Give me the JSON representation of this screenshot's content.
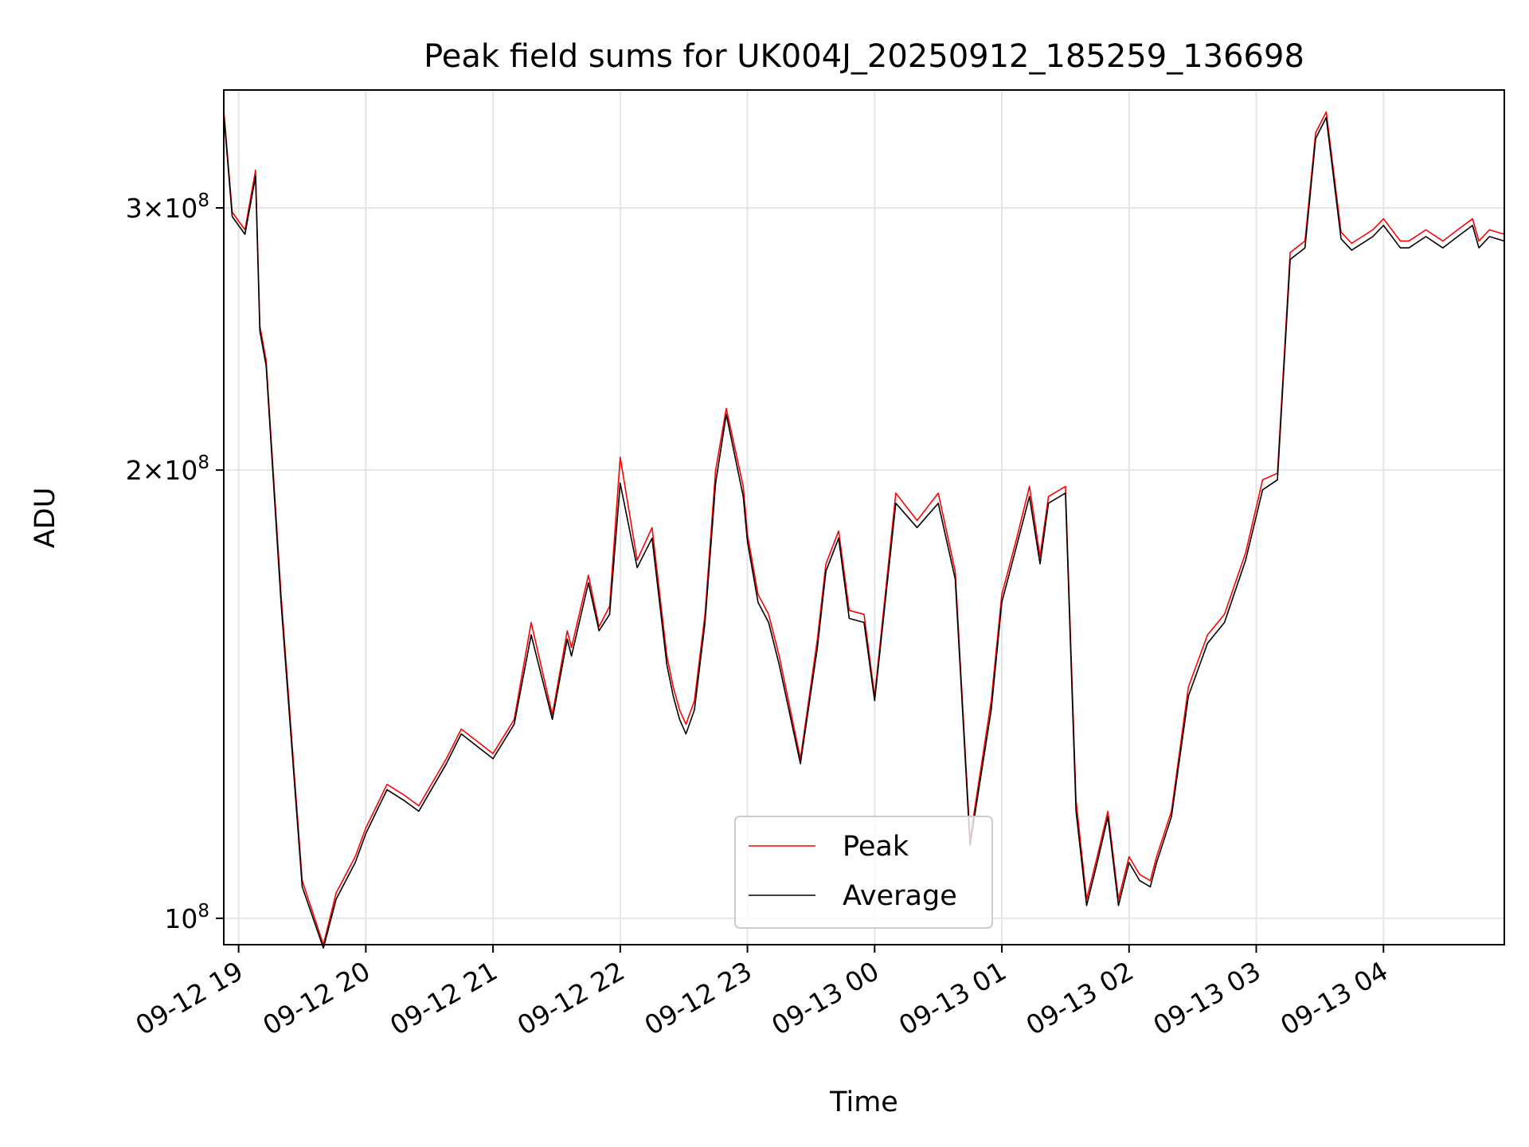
{
  "chart_data": {
    "type": "line",
    "title": "Peak field sums for UK004J_20250912_185259_136698",
    "xlabel": "Time",
    "ylabel": "ADU",
    "yscale": "log",
    "grid": true,
    "legend_location": "lower center",
    "x_range": [
      "2025-09-12 18:53",
      "2025-09-13 04:57"
    ],
    "ylim": [
      96000000,
      360000000
    ],
    "x_tick_labels": [
      "09-12 19",
      "09-12 20",
      "09-12 21",
      "09-12 22",
      "09-12 23",
      "09-13 00",
      "09-13 01",
      "09-13 02",
      "09-13 03",
      "09-13 04"
    ],
    "y_ticks": [
      {
        "value": 100000000,
        "label_mantissa": "",
        "label_base": "10",
        "label_exp": "8"
      },
      {
        "value": 200000000,
        "label_mantissa": "2×",
        "label_base": "10",
        "label_exp": "8"
      },
      {
        "value": 300000000,
        "label_mantissa": "3×",
        "label_base": "10",
        "label_exp": "8"
      }
    ],
    "series": [
      {
        "name": "Peak",
        "color": "#ff0000",
        "x": [
          "2025-09-12 18:53",
          "2025-09-12 18:57",
          "2025-09-12 19:03",
          "2025-09-12 19:08",
          "2025-09-12 19:10",
          "2025-09-12 19:13",
          "2025-09-12 19:20",
          "2025-09-12 19:30",
          "2025-09-12 19:40",
          "2025-09-12 19:46",
          "2025-09-12 19:55",
          "2025-09-12 20:00",
          "2025-09-12 20:10",
          "2025-09-12 20:18",
          "2025-09-12 20:25",
          "2025-09-12 20:38",
          "2025-09-12 20:45",
          "2025-09-12 21:00",
          "2025-09-12 21:10",
          "2025-09-12 21:18",
          "2025-09-12 21:28",
          "2025-09-12 21:35",
          "2025-09-12 21:37",
          "2025-09-12 21:45",
          "2025-09-12 21:50",
          "2025-09-12 21:55",
          "2025-09-12 22:00",
          "2025-09-12 22:08",
          "2025-09-12 22:15",
          "2025-09-12 22:22",
          "2025-09-12 22:25",
          "2025-09-12 22:28",
          "2025-09-12 22:31",
          "2025-09-12 22:35",
          "2025-09-12 22:40",
          "2025-09-12 22:45",
          "2025-09-12 22:50",
          "2025-09-12 22:58",
          "2025-09-12 23:00",
          "2025-09-12 23:05",
          "2025-09-12 23:10",
          "2025-09-12 23:15",
          "2025-09-12 23:25",
          "2025-09-12 23:33",
          "2025-09-12 23:37",
          "2025-09-12 23:43",
          "2025-09-12 23:48",
          "2025-09-12 23:55",
          "2025-09-13 00:00",
          "2025-09-13 00:10",
          "2025-09-13 00:20",
          "2025-09-13 00:30",
          "2025-09-13 00:38",
          "2025-09-13 00:45",
          "2025-09-13 00:55",
          "2025-09-13 01:00",
          "2025-09-13 01:07",
          "2025-09-13 01:13",
          "2025-09-13 01:18",
          "2025-09-13 01:22",
          "2025-09-13 01:30",
          "2025-09-13 01:35",
          "2025-09-13 01:40",
          "2025-09-13 01:45",
          "2025-09-13 01:50",
          "2025-09-13 01:55",
          "2025-09-13 02:00",
          "2025-09-13 02:05",
          "2025-09-13 02:10",
          "2025-09-13 02:13",
          "2025-09-13 02:20",
          "2025-09-13 02:28",
          "2025-09-13 02:37",
          "2025-09-13 02:45",
          "2025-09-13 02:55",
          "2025-09-13 03:03",
          "2025-09-13 03:10",
          "2025-09-13 03:16",
          "2025-09-13 03:23",
          "2025-09-13 03:28",
          "2025-09-13 03:33",
          "2025-09-13 03:40",
          "2025-09-13 03:45",
          "2025-09-13 03:55",
          "2025-09-13 04:00",
          "2025-09-13 04:08",
          "2025-09-13 04:12",
          "2025-09-13 04:20",
          "2025-09-13 04:28",
          "2025-09-13 04:35",
          "2025-09-13 04:42",
          "2025-09-13 04:45",
          "2025-09-13 04:50",
          "2025-09-13 04:57"
        ],
        "values": [
          349000000,
          298000000,
          290000000,
          318000000,
          250000000,
          237000000,
          165000000,
          106000000,
          96000000,
          104000000,
          110000000,
          115000000,
          123000000,
          121000000,
          119000000,
          128000000,
          134000000,
          129000000,
          136000000,
          158000000,
          137000000,
          156000000,
          152000000,
          170000000,
          157000000,
          162000000,
          204000000,
          174000000,
          183000000,
          150000000,
          143000000,
          138000000,
          135000000,
          140000000,
          160000000,
          200000000,
          220000000,
          195000000,
          181000000,
          165000000,
          160000000,
          150000000,
          128000000,
          154000000,
          173000000,
          182000000,
          161000000,
          160000000,
          141000000,
          193000000,
          185000000,
          193000000,
          171000000,
          113000000,
          140000000,
          165000000,
          180000000,
          195000000,
          175000000,
          192000000,
          195000000,
          120000000,
          103000000,
          110000000,
          118000000,
          103000000,
          110000000,
          107000000,
          106000000,
          110000000,
          118000000,
          143000000,
          155000000,
          160000000,
          176000000,
          197000000,
          199000000,
          280000000,
          285000000,
          337000000,
          348000000,
          289000000,
          284000000,
          290000000,
          295000000,
          285000000,
          285000000,
          290000000,
          285000000,
          290000000,
          295000000,
          285000000,
          290000000,
          288000000
        ]
      },
      {
        "name": "Average",
        "color": "#000000",
        "x": [
          "2025-09-12 18:53",
          "2025-09-12 18:57",
          "2025-09-12 19:03",
          "2025-09-12 19:08",
          "2025-09-12 19:10",
          "2025-09-12 19:13",
          "2025-09-12 19:20",
          "2025-09-12 19:30",
          "2025-09-12 19:40",
          "2025-09-12 19:46",
          "2025-09-12 19:55",
          "2025-09-12 20:00",
          "2025-09-12 20:10",
          "2025-09-12 20:18",
          "2025-09-12 20:25",
          "2025-09-12 20:38",
          "2025-09-12 20:45",
          "2025-09-12 21:00",
          "2025-09-12 21:10",
          "2025-09-12 21:18",
          "2025-09-12 21:28",
          "2025-09-12 21:35",
          "2025-09-12 21:37",
          "2025-09-12 21:45",
          "2025-09-12 21:50",
          "2025-09-12 21:55",
          "2025-09-12 22:00",
          "2025-09-12 22:08",
          "2025-09-12 22:15",
          "2025-09-12 22:22",
          "2025-09-12 22:25",
          "2025-09-12 22:28",
          "2025-09-12 22:31",
          "2025-09-12 22:35",
          "2025-09-12 22:40",
          "2025-09-12 22:45",
          "2025-09-12 22:50",
          "2025-09-12 22:58",
          "2025-09-12 23:00",
          "2025-09-12 23:05",
          "2025-09-12 23:10",
          "2025-09-12 23:15",
          "2025-09-12 23:25",
          "2025-09-12 23:33",
          "2025-09-12 23:37",
          "2025-09-12 23:43",
          "2025-09-12 23:48",
          "2025-09-12 23:55",
          "2025-09-13 00:00",
          "2025-09-13 00:10",
          "2025-09-13 00:20",
          "2025-09-13 00:30",
          "2025-09-13 00:38",
          "2025-09-13 00:45",
          "2025-09-13 00:55",
          "2025-09-13 01:00",
          "2025-09-13 01:07",
          "2025-09-13 01:13",
          "2025-09-13 01:18",
          "2025-09-13 01:22",
          "2025-09-13 01:30",
          "2025-09-13 01:35",
          "2025-09-13 01:40",
          "2025-09-13 01:45",
          "2025-09-13 01:50",
          "2025-09-13 01:55",
          "2025-09-13 02:00",
          "2025-09-13 02:05",
          "2025-09-13 02:10",
          "2025-09-13 02:13",
          "2025-09-13 02:20",
          "2025-09-13 02:28",
          "2025-09-13 02:37",
          "2025-09-13 02:45",
          "2025-09-13 02:55",
          "2025-09-13 03:03",
          "2025-09-13 03:10",
          "2025-09-13 03:16",
          "2025-09-13 03:23",
          "2025-09-13 03:28",
          "2025-09-13 03:33",
          "2025-09-13 03:40",
          "2025-09-13 03:45",
          "2025-09-13 03:55",
          "2025-09-13 04:00",
          "2025-09-13 04:08",
          "2025-09-13 04:12",
          "2025-09-13 04:20",
          "2025-09-13 04:28",
          "2025-09-13 04:35",
          "2025-09-13 04:42",
          "2025-09-13 04:45",
          "2025-09-13 04:50",
          "2025-09-13 04:57"
        ],
        "values": [
          347000000,
          296000000,
          288000000,
          315000000,
          248000000,
          235000000,
          163000000,
          105000000,
          95500000,
          103000000,
          109000000,
          114000000,
          122000000,
          120000000,
          118000000,
          127000000,
          133000000,
          128000000,
          135000000,
          155000000,
          136000000,
          154000000,
          150000000,
          168000000,
          156000000,
          160000000,
          196000000,
          172000000,
          180000000,
          148000000,
          141000000,
          136000000,
          133000000,
          138000000,
          158000000,
          196000000,
          218000000,
          192000000,
          179000000,
          163000000,
          158000000,
          148000000,
          127000000,
          152000000,
          171000000,
          180000000,
          159000000,
          158000000,
          140000000,
          190000000,
          183000000,
          190000000,
          169000000,
          112000000,
          138000000,
          163000000,
          178000000,
          192000000,
          173000000,
          190000000,
          193000000,
          118000000,
          102000000,
          109000000,
          117000000,
          102000000,
          109000000,
          106000000,
          105000000,
          109000000,
          117000000,
          141000000,
          153000000,
          158000000,
          174000000,
          194000000,
          197000000,
          277000000,
          282000000,
          334000000,
          345000000,
          286000000,
          281000000,
          287000000,
          292000000,
          282000000,
          282000000,
          287000000,
          282000000,
          287000000,
          292000000,
          282000000,
          287000000,
          285000000
        ]
      }
    ]
  }
}
